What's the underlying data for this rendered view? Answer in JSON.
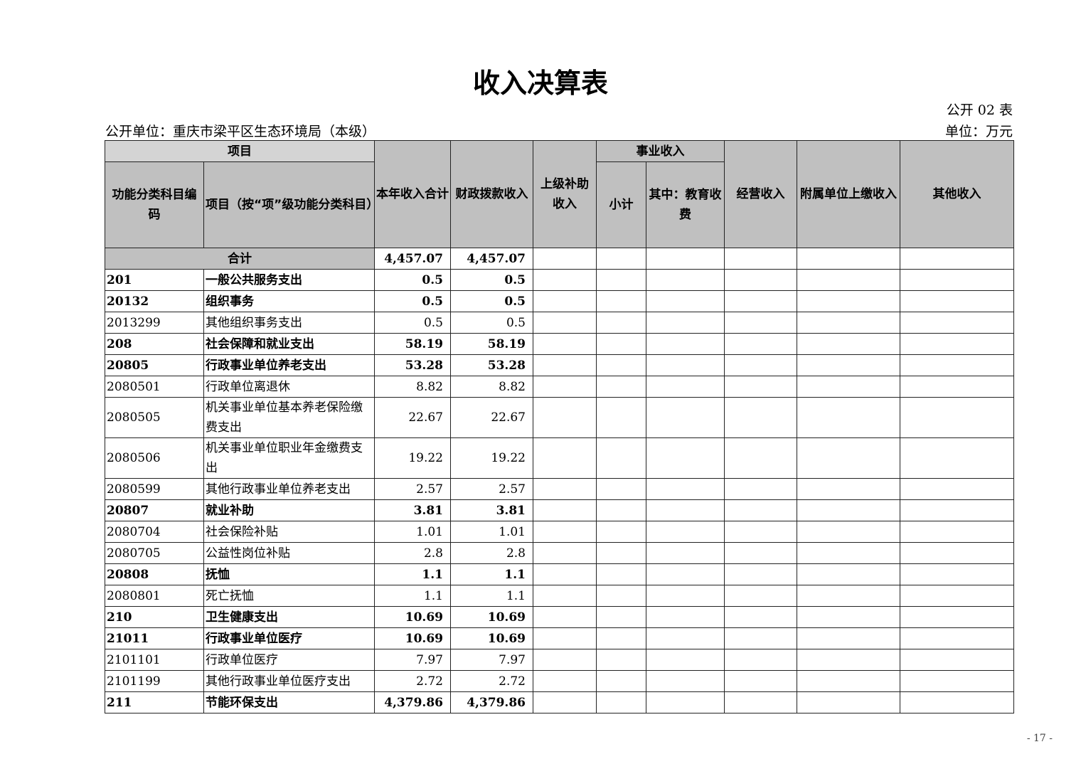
{
  "title": "收入决算表",
  "form_no": "公开 02 表",
  "org": "公开单位：重庆市梁平区生态环境局（本级）",
  "unit": "单位：万元",
  "headers": {
    "item": "项目",
    "code": "功能分类科目编码",
    "name": "项目（按“项”级功能分类科目）",
    "total": "本年收入合计",
    "fiscal": "财政拨款收入",
    "superior": "上级补助收入",
    "business": "事业收入",
    "subtotal": "小计",
    "edu": "其中：教育收费",
    "operating": "经营收入",
    "affiliated": "附属单位上缴收入",
    "other": "其他收入"
  },
  "total_row": {
    "label": "合计",
    "total": "4,457.07",
    "fiscal": "4,457.07"
  },
  "rows": [
    {
      "code": "201",
      "name": "一般公共服务支出",
      "total": "0.5",
      "fiscal": "0.5",
      "bold": true
    },
    {
      "code": "20132",
      "name": "组织事务",
      "total": "0.5",
      "fiscal": "0.5",
      "bold": true
    },
    {
      "code": "2013299",
      "name": "其他组织事务支出",
      "total": "0.5",
      "fiscal": "0.5"
    },
    {
      "code": "208",
      "name": "社会保障和就业支出",
      "total": "58.19",
      "fiscal": "58.19",
      "bold": true
    },
    {
      "code": "20805",
      "name": "行政事业单位养老支出",
      "total": "53.28",
      "fiscal": "53.28",
      "bold": true
    },
    {
      "code": "2080501",
      "name": "行政单位离退休",
      "total": "8.82",
      "fiscal": "8.82"
    },
    {
      "code": "2080505",
      "name": "机关事业单位基本养老保险缴费支出",
      "total": "22.67",
      "fiscal": "22.67",
      "tall": true
    },
    {
      "code": "2080506",
      "name": "机关事业单位职业年金缴费支出",
      "total": "19.22",
      "fiscal": "19.22",
      "tall": true
    },
    {
      "code": "2080599",
      "name": "其他行政事业单位养老支出",
      "total": "2.57",
      "fiscal": "2.57"
    },
    {
      "code": "20807",
      "name": "就业补助",
      "total": "3.81",
      "fiscal": "3.81",
      "bold": true
    },
    {
      "code": "2080704",
      "name": "社会保险补贴",
      "total": "1.01",
      "fiscal": "1.01"
    },
    {
      "code": "2080705",
      "name": "公益性岗位补贴",
      "total": "2.8",
      "fiscal": "2.8"
    },
    {
      "code": "20808",
      "name": "抚恤",
      "total": "1.1",
      "fiscal": "1.1",
      "bold": true
    },
    {
      "code": "2080801",
      "name": "死亡抚恤",
      "total": "1.1",
      "fiscal": "1.1"
    },
    {
      "code": "210",
      "name": "卫生健康支出",
      "total": "10.69",
      "fiscal": "10.69",
      "bold": true
    },
    {
      "code": "21011",
      "name": "行政事业单位医疗",
      "total": "10.69",
      "fiscal": "10.69",
      "bold": true
    },
    {
      "code": "2101101",
      "name": "行政单位医疗",
      "total": "7.97",
      "fiscal": "7.97"
    },
    {
      "code": "2101199",
      "name": "其他行政事业单位医疗支出",
      "total": "2.72",
      "fiscal": "2.72"
    },
    {
      "code": "211",
      "name": "节能环保支出",
      "total": "4,379.86",
      "fiscal": "4,379.86",
      "bold": true
    }
  ],
  "page_number": "- 17 -"
}
